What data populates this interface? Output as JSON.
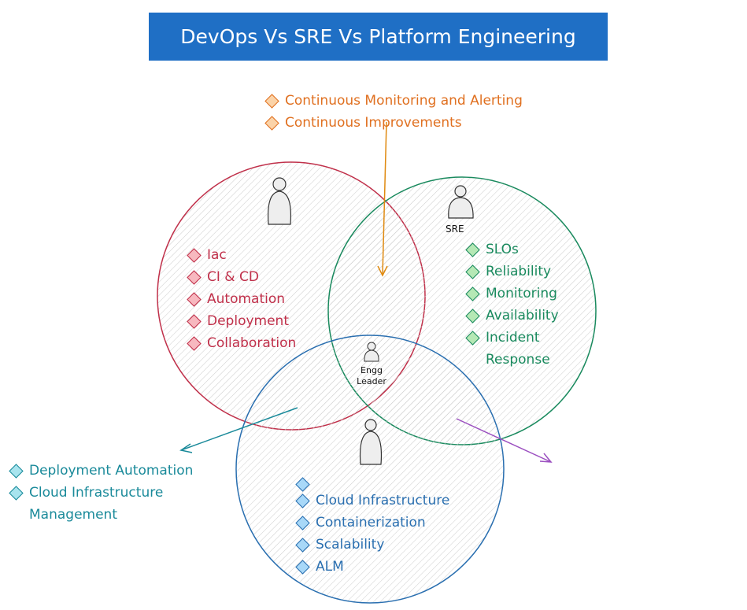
{
  "title": "DevOps Vs SRE Vs Platform Engineering",
  "colors": {
    "title_bg": "#1f6fc5",
    "devops": "#c0304a",
    "sre": "#1a8a5e",
    "platform": "#2a6fb0",
    "shared_top": "#e07020",
    "shared_left": "#1a8a9a",
    "arrow_right": "#9b4fc0"
  },
  "shared_top": {
    "items": [
      "Continuous Monitoring and Alerting",
      "Continuous Improvements"
    ]
  },
  "devops": {
    "items": [
      "Iac",
      "CI & CD",
      "Automation",
      "Deployment",
      "Collaboration"
    ]
  },
  "sre": {
    "role": "SRE",
    "items": [
      "SLOs",
      "Reliability",
      "Monitoring",
      "Availability",
      "Incident Response"
    ]
  },
  "center": {
    "role": "Engg Leader"
  },
  "platform": {
    "items": [
      "",
      "Cloud Infrastructure",
      "Containerization",
      "Scalability",
      "ALM"
    ]
  },
  "shared_left": {
    "items": [
      "Deployment Automation",
      "Cloud Infrastructure Management"
    ]
  }
}
